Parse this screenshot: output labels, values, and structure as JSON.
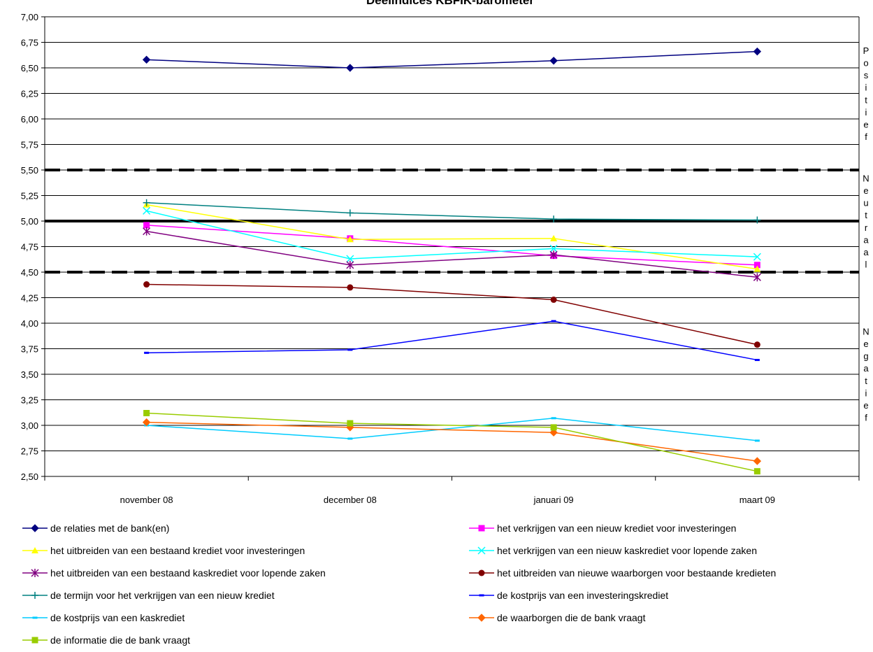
{
  "chart_data": {
    "type": "line",
    "title": "Deelindices KBFIK-barometer",
    "categories": [
      "november 08",
      "december 08",
      "januari 09",
      "maart 09"
    ],
    "ylim": [
      2.5,
      7.0
    ],
    "ystep": 0.25,
    "y_tick_labels": [
      "2,50",
      "2,75",
      "3,00",
      "3,25",
      "3,50",
      "3,75",
      "4,00",
      "4,25",
      "4,50",
      "4,75",
      "5,00",
      "5,25",
      "5,50",
      "5,75",
      "6,00",
      "6,25",
      "6,50",
      "6,75",
      "7,00"
    ],
    "grid": true,
    "reference_lines": [
      {
        "value": 5.5,
        "style": "dashed"
      },
      {
        "value": 5.0,
        "style": "solid"
      },
      {
        "value": 4.5,
        "style": "dashed"
      }
    ],
    "zone_labels": [
      {
        "text": "Positief",
        "y_from": 5.5,
        "y_to": 7.0
      },
      {
        "text": "Neutraal",
        "y_from": 4.5,
        "y_to": 5.5
      },
      {
        "text": "Negatief",
        "y_from": 2.5,
        "y_to": 4.5
      }
    ],
    "legend_position": "bottom",
    "series": [
      {
        "name": "de relaties met de bank(en)",
        "color": "#000080",
        "marker": "diamond",
        "values": [
          6.58,
          6.5,
          6.57,
          6.66
        ]
      },
      {
        "name": "het verkrijgen van een nieuw krediet voor investeringen",
        "color": "#ff00ff",
        "marker": "square",
        "values": [
          4.96,
          4.83,
          4.66,
          4.57
        ]
      },
      {
        "name": "het uitbreiden van een bestaand krediet voor investeringen",
        "color": "#ffff00",
        "marker": "triangle",
        "values": [
          5.16,
          4.82,
          4.83,
          4.53
        ]
      },
      {
        "name": "het verkrijgen van een nieuw kaskrediet voor lopende zaken",
        "color": "#00ffff",
        "marker": "x",
        "values": [
          5.1,
          4.63,
          4.73,
          4.65
        ]
      },
      {
        "name": "het uitbreiden van een bestaand kaskrediet voor lopende zaken",
        "color": "#800080",
        "marker": "star",
        "values": [
          4.9,
          4.57,
          4.67,
          4.45
        ]
      },
      {
        "name": "het uitbreiden van nieuwe waarborgen voor bestaande kredieten",
        "color": "#800000",
        "marker": "circle",
        "values": [
          4.38,
          4.35,
          4.23,
          3.79
        ]
      },
      {
        "name": "de termijn voor het verkrijgen van een nieuw krediet",
        "color": "#008080",
        "marker": "plus",
        "values": [
          5.18,
          5.08,
          5.02,
          5.01
        ]
      },
      {
        "name": "de kostprijs van een investeringskrediet",
        "color": "#0000ff",
        "marker": "dash",
        "values": [
          3.71,
          3.74,
          4.02,
          3.64
        ]
      },
      {
        "name": "de kostprijs van een kaskrediet",
        "color": "#00ccff",
        "marker": "dash",
        "values": [
          3.0,
          2.87,
          3.07,
          2.85
        ]
      },
      {
        "name": "de waarborgen die de bank vraagt",
        "color": "#ff6600",
        "marker": "diamond",
        "values": [
          3.03,
          2.98,
          2.93,
          2.65
        ]
      },
      {
        "name": "de informatie die de bank vraagt",
        "color": "#99cc00",
        "marker": "square",
        "values": [
          3.12,
          3.02,
          2.98,
          2.55
        ]
      }
    ]
  }
}
